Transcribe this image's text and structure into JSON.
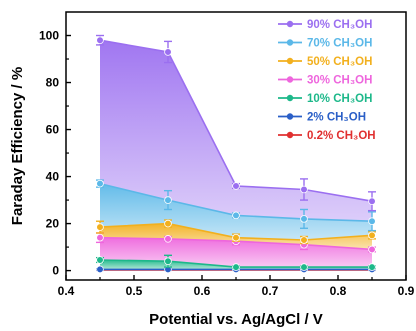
{
  "chart_data": {
    "type": "area",
    "xlabel": "Potential vs. Ag/AgCl / V",
    "ylabel": "Faraday Efficiency / %",
    "xlim": [
      0.4,
      0.9
    ],
    "ylim": [
      -4,
      110
    ],
    "x_ticks": [
      "0.4",
      "0.5",
      "0.6",
      "0.7",
      "0.8",
      "0.9"
    ],
    "y_ticks": [
      "0",
      "20",
      "40",
      "60",
      "80",
      "100"
    ],
    "x": [
      0.45,
      0.55,
      0.65,
      0.75,
      0.85
    ],
    "legend_position": "top-right",
    "grid": false,
    "series": [
      {
        "name": "90% CH₃OH",
        "color": "#9b6ff0",
        "values": [
          98,
          93,
          36,
          34.5,
          29.5
        ],
        "errors": [
          2,
          4.5,
          1,
          4.5,
          4
        ]
      },
      {
        "name": "70% CH₃OH",
        "color": "#5bb8e8",
        "values": [
          37,
          30,
          23.5,
          22,
          21
        ],
        "errors": [
          1.5,
          4,
          1,
          4,
          4
        ]
      },
      {
        "name": "50% CH₃OH",
        "color": "#f2b01e",
        "values": [
          18.5,
          20,
          14,
          13,
          15
        ],
        "errors": [
          2.5,
          1.5,
          1.5,
          1.5,
          1.5
        ]
      },
      {
        "name": "30% CH₃OH",
        "color": "#ee66dd",
        "values": [
          14,
          13.5,
          12.5,
          11,
          9
        ],
        "errors": [
          2,
          1,
          1.5,
          2,
          1
        ]
      },
      {
        "name": "10% CH₃OH",
        "color": "#1db88a",
        "values": [
          4.5,
          4,
          1.5,
          1.5,
          1.5
        ],
        "errors": [
          1,
          2.5,
          0.5,
          0.5,
          0.5
        ]
      },
      {
        "name": "2% CH₃OH",
        "color": "#2a5fc7",
        "values": [
          0.5,
          0.5,
          0.5,
          0.5,
          0.5
        ],
        "errors": [
          0.3,
          0.3,
          0.3,
          0.3,
          0.3
        ]
      },
      {
        "name": "0.2% CH₃OH",
        "color": "#e03030",
        "values": [
          0.3,
          0.3,
          0.3,
          0.3,
          0.3
        ],
        "errors": [
          0.2,
          0.2,
          0.2,
          0.2,
          0.2
        ]
      }
    ]
  }
}
